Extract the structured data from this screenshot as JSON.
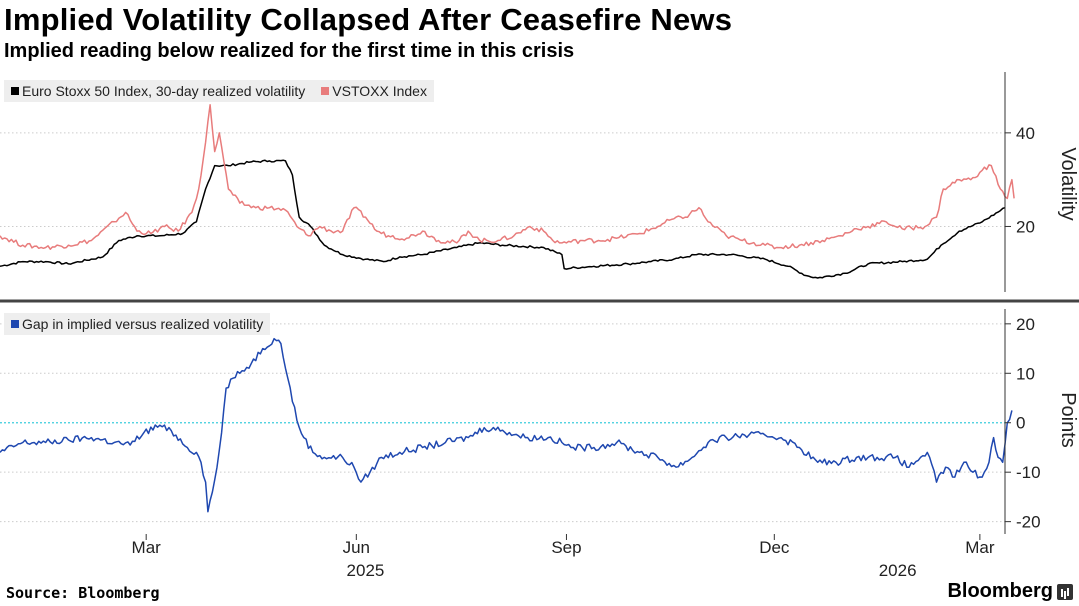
{
  "header": {
    "title": "Implied Volatility Collapsed After Ceasefire News",
    "subtitle": "Implied reading below realized for the first time in this crisis"
  },
  "footer": {
    "source": "Source: Bloomberg",
    "brand": "Bloomberg"
  },
  "colors": {
    "realized": "#000000",
    "vstoxx": "#e87c7c",
    "gap": "#1f48b0",
    "zero_line": "#3fd0e0",
    "divider": "#444444"
  },
  "chart_data": [
    {
      "type": "line",
      "title": "Implied Volatility Collapsed After Ceasefire News",
      "subtitle": "Implied reading below realized for the first time in this crisis",
      "ylabel": "Volatility",
      "ylim": [
        6,
        53
      ],
      "yticks": [
        20,
        40
      ],
      "xlim": [
        0,
        440
      ],
      "x_tick_labels": [
        "Mar",
        "Jun",
        "Sep",
        "Dec",
        "Mar"
      ],
      "x_ticks": [
        64,
        156,
        248,
        339,
        429
      ],
      "year_labels": [
        "2025",
        "2026"
      ],
      "year_label_positions": [
        160,
        393
      ],
      "legend_position": "top-left",
      "series": [
        {
          "name": "Euro Stoxx 50 Index, 30-day realized volatility",
          "color": "#000000",
          "points": [
            [
              0,
              11.5
            ],
            [
              10,
              12.5
            ],
            [
              20,
              12.5
            ],
            [
              30,
              12
            ],
            [
              45,
              13.5
            ],
            [
              52,
              17
            ],
            [
              60,
              18
            ],
            [
              70,
              18
            ],
            [
              80,
              18.5
            ],
            [
              86,
              21
            ],
            [
              90,
              28
            ],
            [
              94,
              33
            ],
            [
              100,
              33
            ],
            [
              110,
              33.8
            ],
            [
              118,
              34
            ],
            [
              125,
              34
            ],
            [
              128,
              31
            ],
            [
              131,
              22
            ],
            [
              136,
              20
            ],
            [
              142,
              16
            ],
            [
              150,
              14
            ],
            [
              160,
              13
            ],
            [
              168,
              12.5
            ],
            [
              175,
              13.5
            ],
            [
              185,
              14
            ],
            [
              200,
              15.5
            ],
            [
              210,
              16.5
            ],
            [
              220,
              16
            ],
            [
              238,
              15.5
            ],
            [
              246,
              14
            ],
            [
              247,
              11
            ],
            [
              260,
              11.5
            ],
            [
              275,
              12
            ],
            [
              285,
              12.5
            ],
            [
              295,
              13
            ],
            [
              305,
              14
            ],
            [
              320,
              14
            ],
            [
              335,
              13
            ],
            [
              345,
              11.5
            ],
            [
              353,
              9.5
            ],
            [
              358,
              9
            ],
            [
              370,
              10
            ],
            [
              380,
              12
            ],
            [
              395,
              12.5
            ],
            [
              406,
              13
            ],
            [
              412,
              16
            ],
            [
              420,
              19
            ],
            [
              430,
              21
            ],
            [
              440,
              24
            ]
          ]
        },
        {
          "name": "VSTOXX Index",
          "color": "#e87c7c",
          "points": [
            [
              0,
              18
            ],
            [
              10,
              16
            ],
            [
              20,
              15.5
            ],
            [
              30,
              16
            ],
            [
              40,
              17
            ],
            [
              50,
              21
            ],
            [
              55,
              23
            ],
            [
              60,
              19
            ],
            [
              66,
              18.5
            ],
            [
              72,
              20
            ],
            [
              78,
              19
            ],
            [
              84,
              23
            ],
            [
              87,
              28
            ],
            [
              90,
              38
            ],
            [
              92,
              46
            ],
            [
              94,
              36
            ],
            [
              96,
              40
            ],
            [
              98,
              34
            ],
            [
              100,
              28
            ],
            [
              105,
              25
            ],
            [
              112,
              24
            ],
            [
              118,
              24
            ],
            [
              125,
              23.5
            ],
            [
              130,
              20
            ],
            [
              135,
              18
            ],
            [
              140,
              20
            ],
            [
              145,
              19
            ],
            [
              150,
              19
            ],
            [
              155,
              24
            ],
            [
              160,
              22
            ],
            [
              165,
              19
            ],
            [
              170,
              18
            ],
            [
              178,
              17.5
            ],
            [
              185,
              19
            ],
            [
              192,
              17
            ],
            [
              200,
              16.5
            ],
            [
              205,
              19
            ],
            [
              210,
              17
            ],
            [
              218,
              17
            ],
            [
              225,
              18
            ],
            [
              232,
              20
            ],
            [
              238,
              19
            ],
            [
              242,
              17
            ],
            [
              246,
              16.5
            ],
            [
              255,
              17
            ],
            [
              262,
              17
            ],
            [
              270,
              17.5
            ],
            [
              280,
              18.5
            ],
            [
              288,
              20
            ],
            [
              294,
              21.5
            ],
            [
              300,
              22
            ],
            [
              306,
              24
            ],
            [
              310,
              21
            ],
            [
              318,
              18
            ],
            [
              325,
              17
            ],
            [
              335,
              16
            ],
            [
              340,
              15.5
            ],
            [
              350,
              16
            ],
            [
              360,
              17
            ],
            [
              368,
              18
            ],
            [
              375,
              19.5
            ],
            [
              380,
              20
            ],
            [
              388,
              21
            ],
            [
              395,
              19.5
            ],
            [
              405,
              20
            ],
            [
              410,
              22
            ],
            [
              413,
              28
            ],
            [
              420,
              30
            ],
            [
              425,
              30
            ],
            [
              430,
              32
            ],
            [
              434,
              33
            ],
            [
              438,
              28
            ],
            [
              441,
              26
            ],
            [
              443,
              30
            ],
            [
              444,
              26
            ]
          ]
        }
      ]
    },
    {
      "type": "line",
      "ylabel": "Points",
      "ylim": [
        -22.5,
        23
      ],
      "yticks": [
        -20,
        -10,
        0,
        10,
        20
      ],
      "xlim": [
        0,
        440
      ],
      "zero_line": 0,
      "legend_position": "top-left",
      "series": [
        {
          "name": "Gap in implied versus realized volatility",
          "color": "#1f48b0",
          "points": [
            [
              0,
              -6
            ],
            [
              10,
              -4
            ],
            [
              20,
              -4
            ],
            [
              30,
              -3.5
            ],
            [
              40,
              -3
            ],
            [
              50,
              -4
            ],
            [
              57,
              -4.5
            ],
            [
              63,
              -2
            ],
            [
              70,
              -0.5
            ],
            [
              77,
              -2.5
            ],
            [
              82,
              -5
            ],
            [
              86,
              -6
            ],
            [
              88,
              -8
            ],
            [
              90,
              -12
            ],
            [
              91,
              -18
            ],
            [
              93,
              -14
            ],
            [
              95,
              -9
            ],
            [
              97,
              -2
            ],
            [
              99,
              7
            ],
            [
              102,
              9
            ],
            [
              105,
              10
            ],
            [
              110,
              12
            ],
            [
              115,
              15
            ],
            [
              120,
              17
            ],
            [
              123,
              16
            ],
            [
              126,
              9
            ],
            [
              130,
              0.5
            ],
            [
              133,
              -3
            ],
            [
              137,
              -6
            ],
            [
              142,
              -7
            ],
            [
              150,
              -7
            ],
            [
              155,
              -9
            ],
            [
              158,
              -12
            ],
            [
              162,
              -10
            ],
            [
              167,
              -7
            ],
            [
              175,
              -6
            ],
            [
              185,
              -5
            ],
            [
              195,
              -4
            ],
            [
              205,
              -3
            ],
            [
              212,
              -1
            ],
            [
              220,
              -1.5
            ],
            [
              230,
              -3
            ],
            [
              240,
              -3
            ],
            [
              246,
              -4
            ],
            [
              250,
              -5
            ],
            [
              260,
              -5
            ],
            [
              270,
              -4
            ],
            [
              280,
              -6
            ],
            [
              288,
              -7
            ],
            [
              296,
              -9
            ],
            [
              303,
              -7
            ],
            [
              310,
              -4
            ],
            [
              318,
              -3
            ],
            [
              326,
              -2.5
            ],
            [
              335,
              -2.5
            ],
            [
              342,
              -3
            ],
            [
              350,
              -5
            ],
            [
              358,
              -8
            ],
            [
              366,
              -8
            ],
            [
              375,
              -7
            ],
            [
              384,
              -7
            ],
            [
              392,
              -7
            ],
            [
              398,
              -9
            ],
            [
              403,
              -7
            ],
            [
              406,
              -6
            ],
            [
              410,
              -12
            ],
            [
              414,
              -9
            ],
            [
              418,
              -11
            ],
            [
              422,
              -8
            ],
            [
              426,
              -10
            ],
            [
              430,
              -11
            ],
            [
              433,
              -8
            ],
            [
              435,
              -3
            ],
            [
              437,
              -7
            ],
            [
              439,
              -8
            ],
            [
              441,
              0
            ],
            [
              443,
              2.5
            ]
          ]
        }
      ]
    }
  ]
}
